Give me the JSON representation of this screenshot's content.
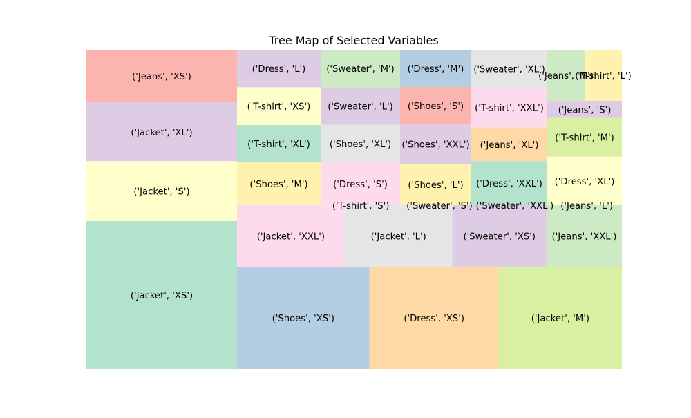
{
  "chart_data": {
    "type": "treemap",
    "title": "Tree Map of Selected Variables",
    "xlabel": "",
    "ylabel": "",
    "grid": false,
    "legend": "none",
    "tiles": [
      {
        "label": "('Jeans', 'XS')",
        "value": 52,
        "color": "#fbb4ae"
      },
      {
        "label": "('Jacket', 'XL')",
        "value": 58,
        "color": "#decbe4"
      },
      {
        "label": "('Jacket', 'S')",
        "value": 59,
        "color": "#ffffcc"
      },
      {
        "label": "('Jacket', 'XS')",
        "value": 146,
        "color": "#b3e2cd"
      },
      {
        "label": "('Dress', 'L')",
        "value": 30,
        "color": "#decbe4"
      },
      {
        "label": "('T-shirt', 'XS')",
        "value": 30,
        "color": "#ffffcc"
      },
      {
        "label": "('T-shirt', 'XL')",
        "value": 30,
        "color": "#b3e2cd"
      },
      {
        "label": "('Shoes', 'M')",
        "value": 34,
        "color": "#fff2ae"
      },
      {
        "label": "('Sweater', 'M')",
        "value": 21,
        "color": "#ccebc5"
      },
      {
        "label": "('Sweater', 'L')",
        "value": 21,
        "color": "#decbe4"
      },
      {
        "label": "('Shoes', 'XL')",
        "value": 21,
        "color": "#e5e5e5"
      },
      {
        "label": "('Dress', 'S')",
        "value": 24,
        "color": "#fddaec"
      },
      {
        "label": "('Dress', 'M')",
        "value": 19,
        "color": "#b3cde3"
      },
      {
        "label": "('Shoes', 'S')",
        "value": 19,
        "color": "#fbb4ae"
      },
      {
        "label": "('Shoes', 'XXL')",
        "value": 20,
        "color": "#decbe4"
      },
      {
        "label": "('Shoes', 'L')",
        "value": 21,
        "color": "#fff2ae"
      },
      {
        "label": "('Sweater', 'XL')",
        "value": 18,
        "color": "#e5e5e5"
      },
      {
        "label": "('T-shirt', 'XXL')",
        "value": 19,
        "color": "#fddaec"
      },
      {
        "label": "('Jeans', 'XL')",
        "value": 16,
        "color": "#fed9a6"
      },
      {
        "label": "('Dress', 'XXL')",
        "value": 21,
        "color": "#b3e2cd"
      },
      {
        "label": "('Jeans', 'M')",
        "value": 8,
        "color": "#ccebc5"
      },
      {
        "label": "('T-shirt', 'L')",
        "value": 8,
        "color": "#fff2ae"
      },
      {
        "label": "('Jeans', 'S')",
        "value": 7,
        "color": "#decbe4"
      },
      {
        "label": "('T-shirt', 'M')",
        "value": 16,
        "color": "#d9f0a3"
      },
      {
        "label": "('Dress', 'XL')",
        "value": 20,
        "color": "#ffffcc"
      },
      {
        "label": "('T-shirt', 'S')",
        "value": 24,
        "color": "#fbb4ae"
      },
      {
        "label": "('Sweater', 'S')",
        "value": 23,
        "color": "#b3cde3"
      },
      {
        "label": "('Sweater', 'XXL')",
        "value": 22,
        "color": "#fed9a6"
      },
      {
        "label": "('Jeans', 'L')",
        "value": 21,
        "color": "#d9f0a3"
      },
      {
        "label": "('Jacket', 'XXL')",
        "value": 40,
        "color": "#fddaec"
      },
      {
        "label": "('Jacket', 'L')",
        "value": 40,
        "color": "#e5e5e5"
      },
      {
        "label": "('Sweater', 'XS')",
        "value": 35,
        "color": "#decbe4"
      },
      {
        "label": "('Jeans', 'XXL')",
        "value": 28,
        "color": "#ccebc5"
      },
      {
        "label": "('Shoes', 'XS')",
        "value": 43,
        "color": "#b3cde3"
      },
      {
        "label": "('Dress', 'XS')",
        "value": 42,
        "color": "#fed9a6"
      },
      {
        "label": "('Jacket', 'M')",
        "value": 40,
        "color": "#d9f0a3"
      }
    ]
  }
}
